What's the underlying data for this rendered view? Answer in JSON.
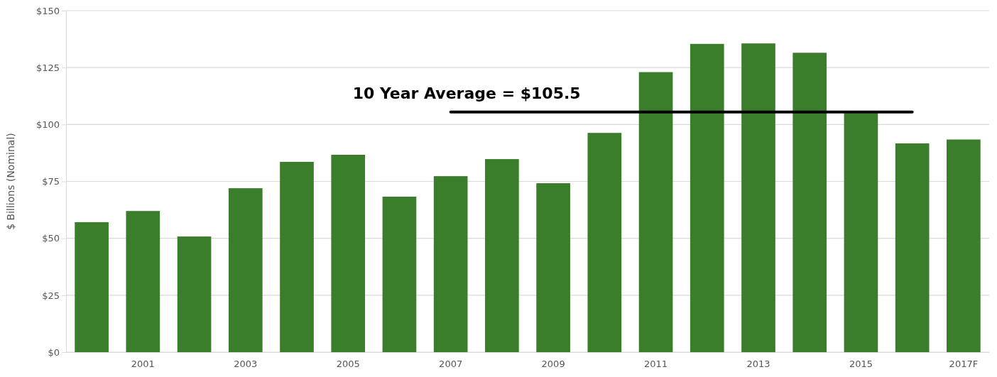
{
  "chart_data": {
    "type": "bar",
    "ylabel": "$ Billions (Nominal)",
    "categories": [
      null,
      "2001",
      null,
      "2003",
      null,
      "2005",
      null,
      "2007",
      null,
      "2009",
      null,
      "2011",
      null,
      "2013",
      null,
      "2015",
      null,
      "2017F"
    ],
    "values": [
      57.1,
      62,
      50.8,
      72,
      83.6,
      86.7,
      68.3,
      77.3,
      84.8,
      74.2,
      96.3,
      123,
      135.4,
      135.6,
      131.5,
      105,
      91.7,
      93.4
    ],
    "color": "#3a7d2a",
    "ylim": [
      0,
      150
    ],
    "yticks": [
      {
        "value": 0,
        "label": "$0"
      },
      {
        "value": 25,
        "label": "$25"
      },
      {
        "value": 50,
        "label": "$50"
      },
      {
        "value": 75,
        "label": "$75"
      },
      {
        "value": 100,
        "label": "$100"
      },
      {
        "value": 125,
        "label": "$125"
      },
      {
        "value": 150,
        "label": "$150"
      }
    ],
    "grid": "y",
    "ref_lines": [
      {
        "axis": "y",
        "value": 105.5,
        "label": "10 Year Average = $105.5",
        "color": "#000000"
      }
    ]
  }
}
